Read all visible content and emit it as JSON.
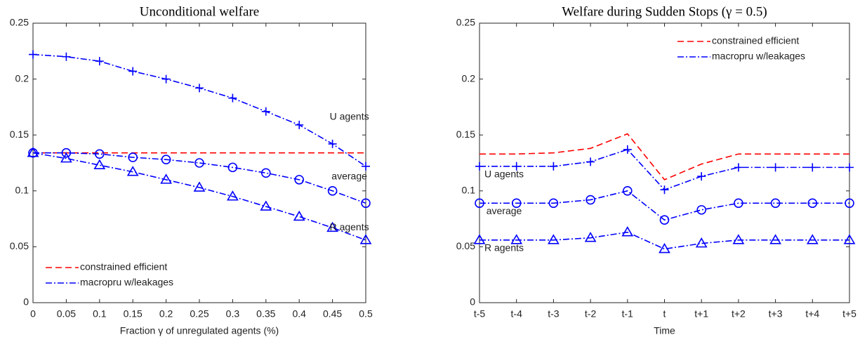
{
  "chart_data": [
    {
      "type": "line",
      "title": "Unconditional welfare",
      "xlabel": "Fraction γ of unregulated agents (%)",
      "x": [
        0,
        0.05,
        0.1,
        0.15,
        0.2,
        0.25,
        0.3,
        0.35,
        0.4,
        0.45,
        0.5
      ],
      "xlim": [
        0,
        0.5
      ],
      "xticks": [
        0,
        0.05,
        0.1,
        0.15,
        0.2,
        0.25,
        0.3,
        0.35,
        0.4,
        0.45,
        0.5
      ],
      "ylim": [
        0,
        0.25
      ],
      "yticks": [
        0,
        0.05,
        0.1,
        0.15,
        0.2,
        0.25
      ],
      "legend": "lower left",
      "series": [
        {
          "name": "constrained efficient",
          "color": "#ff0000",
          "style": "dashed",
          "groups": [
            {
              "values": [
                0.134,
                0.134,
                0.134,
                0.134,
                0.134,
                0.134,
                0.134,
                0.134,
                0.134,
                0.134,
                0.134
              ]
            }
          ]
        },
        {
          "name": "macropru w/leakages",
          "color": "#0000ff",
          "style": "dashdot",
          "groups": [
            {
              "label": "U agents",
              "marker": "plus",
              "values": [
                0.222,
                0.22,
                0.216,
                0.207,
                0.2,
                0.192,
                0.183,
                0.171,
                0.159,
                0.142,
                0.122
              ]
            },
            {
              "label": "average",
              "marker": "circle",
              "values": [
                0.134,
                0.134,
                0.133,
                0.13,
                0.128,
                0.125,
                0.121,
                0.116,
                0.11,
                0.1,
                0.089
              ]
            },
            {
              "label": "R agents",
              "marker": "triangle",
              "values": [
                0.134,
                0.129,
                0.123,
                0.117,
                0.11,
                0.103,
                0.095,
                0.086,
                0.077,
                0.067,
                0.056
              ]
            }
          ]
        }
      ]
    },
    {
      "type": "line",
      "title": "Welfare during Sudden Stops (γ = 0.5)",
      "xlabel": "Time",
      "categories": [
        "t-5",
        "t-4",
        "t-3",
        "t-2",
        "t-1",
        "t",
        "t+1",
        "t+2",
        "t+3",
        "t+4",
        "t+5"
      ],
      "ylim": [
        0,
        0.25
      ],
      "yticks": [
        0,
        0.05,
        0.1,
        0.15,
        0.2,
        0.25
      ],
      "legend": "upper right",
      "series": [
        {
          "name": "constrained efficient",
          "color": "#ff0000",
          "style": "dashed",
          "groups": [
            {
              "values": [
                0.133,
                0.133,
                0.134,
                0.138,
                0.151,
                0.11,
                0.124,
                0.133,
                0.133,
                0.133,
                0.133
              ]
            }
          ]
        },
        {
          "name": "macropru w/leakages",
          "color": "#0000ff",
          "style": "dashdot",
          "groups": [
            {
              "label": "U agents",
              "marker": "plus",
              "values": [
                0.122,
                0.122,
                0.122,
                0.126,
                0.137,
                0.101,
                0.113,
                0.121,
                0.121,
                0.121,
                0.121
              ]
            },
            {
              "label": "average",
              "marker": "circle",
              "values": [
                0.089,
                0.089,
                0.089,
                0.092,
                0.1,
                0.074,
                0.083,
                0.089,
                0.089,
                0.089,
                0.089
              ]
            },
            {
              "label": "R agents",
              "marker": "triangle",
              "values": [
                0.056,
                0.056,
                0.056,
                0.058,
                0.063,
                0.048,
                0.053,
                0.056,
                0.056,
                0.056,
                0.056
              ]
            }
          ]
        }
      ]
    }
  ]
}
